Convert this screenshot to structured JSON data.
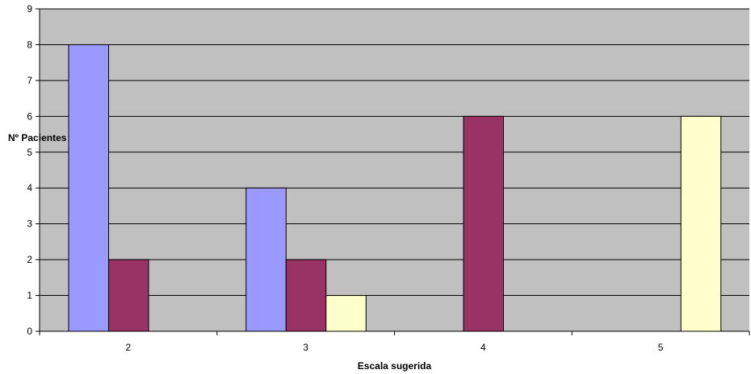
{
  "chart_data": {
    "type": "bar",
    "title": "",
    "xlabel": "Escala sugerida",
    "ylabel": "Nº Pacientes",
    "categories": [
      "2",
      "3",
      "4",
      "5"
    ],
    "ylim": [
      0,
      9
    ],
    "yticks": [
      "0",
      "1",
      "2",
      "3",
      "4",
      "5",
      "6",
      "7",
      "8",
      "9"
    ],
    "grid": true,
    "legend": "none",
    "plot_background": "#C0C0C0",
    "series": [
      {
        "color": "#9999FF",
        "values": [
          8,
          4,
          0,
          0
        ]
      },
      {
        "color": "#993366",
        "values": [
          2,
          2,
          6,
          0
        ]
      },
      {
        "color": "#FFFFCC",
        "values": [
          0,
          1,
          0,
          6
        ]
      }
    ]
  }
}
